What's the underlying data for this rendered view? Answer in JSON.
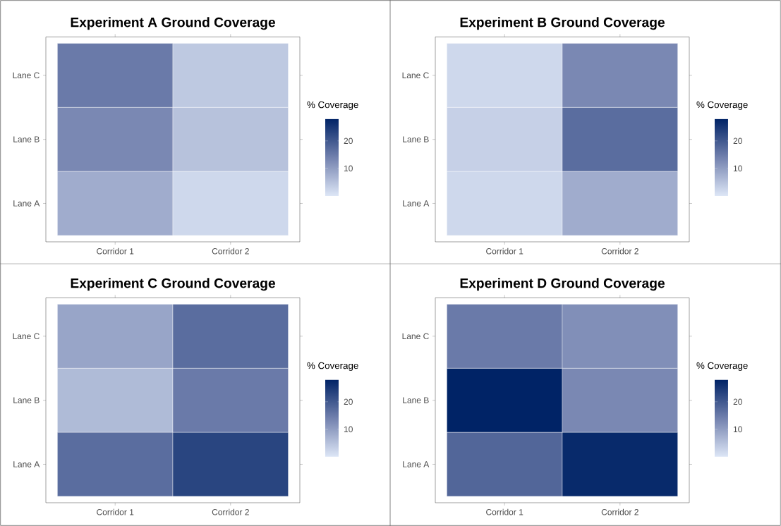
{
  "chart_data": [
    {
      "type": "heatmap",
      "title": "Experiment A Ground Coverage",
      "categories": [
        "Corridor 1",
        "Corridor 2"
      ],
      "y_categories": [
        "Lane C",
        "Lane B",
        "Lane A"
      ],
      "cells": [
        [
          15,
          4
        ],
        [
          13,
          5
        ],
        [
          8,
          2
        ]
      ],
      "clabel": "% Coverage",
      "clim": [
        0,
        28
      ],
      "cticks": [
        10,
        20
      ]
    },
    {
      "type": "heatmap",
      "title": "Experiment B Ground Coverage",
      "categories": [
        "Corridor 1",
        "Corridor 2"
      ],
      "y_categories": [
        "Lane C",
        "Lane B",
        "Lane A"
      ],
      "cells": [
        [
          2,
          13
        ],
        [
          3,
          17
        ],
        [
          2,
          8
        ]
      ],
      "clabel": "% Coverage",
      "clim": [
        0,
        28
      ],
      "cticks": [
        10,
        20
      ]
    },
    {
      "type": "heatmap",
      "title": "Experiment C Ground Coverage",
      "categories": [
        "Corridor 1",
        "Corridor 2"
      ],
      "y_categories": [
        "Lane C",
        "Lane B",
        "Lane A"
      ],
      "cells": [
        [
          9,
          17
        ],
        [
          6,
          15
        ],
        [
          17,
          23
        ]
      ],
      "clabel": "% Coverage",
      "clim": [
        0,
        28
      ],
      "cticks": [
        10,
        20
      ]
    },
    {
      "type": "heatmap",
      "title": "Experiment D Ground Coverage",
      "categories": [
        "Corridor 1",
        "Corridor 2"
      ],
      "y_categories": [
        "Lane C",
        "Lane B",
        "Lane A"
      ],
      "cells": [
        [
          15,
          12
        ],
        [
          28,
          13
        ],
        [
          18,
          27
        ]
      ],
      "clabel": "% Coverage",
      "clim": [
        0,
        28
      ],
      "cticks": [
        10,
        20
      ]
    }
  ]
}
